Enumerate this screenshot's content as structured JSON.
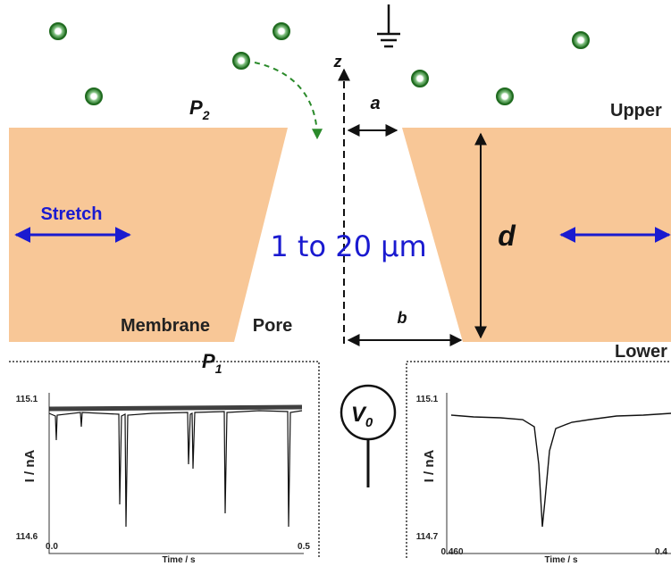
{
  "labels": {
    "z": "z",
    "a": "a",
    "p2": {
      "text": "P",
      "sub": "2"
    },
    "upper": "Upper",
    "stretch": "Stretch",
    "d": "d",
    "size": "1 to 20 µm",
    "membrane": "Membrane",
    "pore": "Pore",
    "b": "b",
    "p1": {
      "text": "P",
      "sub": "1"
    },
    "lower": "Lower",
    "v0": {
      "text": "V",
      "sub": "0"
    }
  },
  "plots": [
    {
      "y_top": "115.1",
      "y_bottom": "114.6",
      "y_label": "I / nA",
      "x_left": "0.0",
      "x_label": "Time / s",
      "x_right": "0.5"
    },
    {
      "y_top": "115.1",
      "y_bottom": "114.7",
      "y_label": "I / nA",
      "x_left": "0.460",
      "x_label": "Time / s",
      "x_right": "0.4"
    }
  ]
}
